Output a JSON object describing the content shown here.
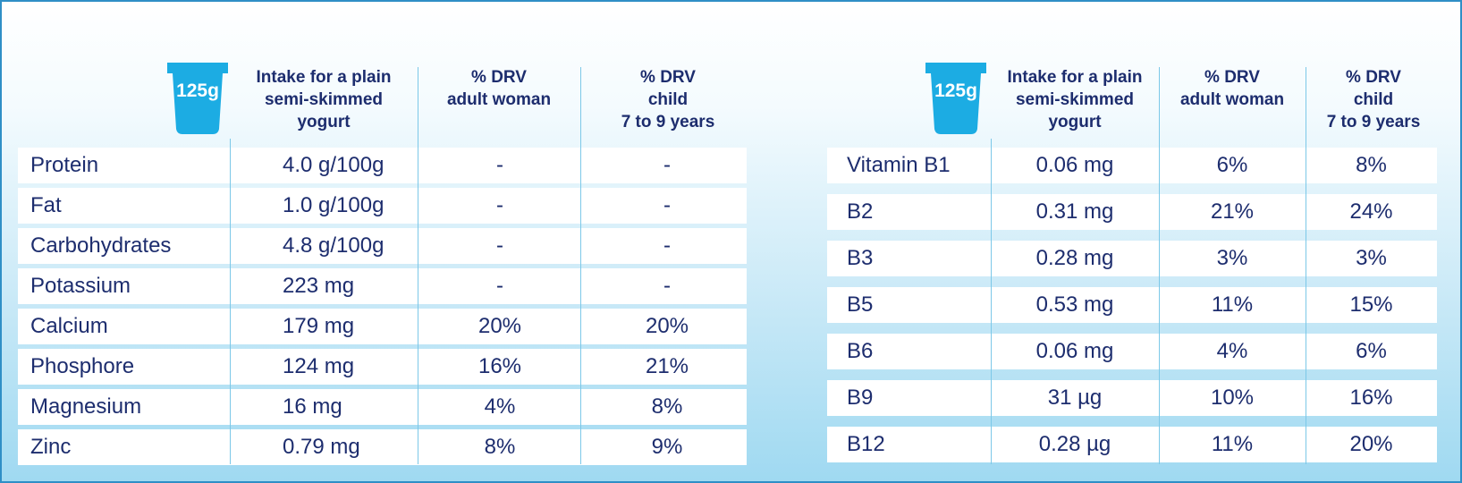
{
  "colors": {
    "text": "#1d2d6e",
    "cup": "#1cace3",
    "line": "#7cc8e8",
    "frame": "#2f8fc6"
  },
  "left_table": {
    "cup_label": "125g",
    "headers": {
      "intake": [
        "Intake for a plain",
        "semi-skimmed",
        "yogurt"
      ],
      "adult": [
        "% DRV",
        "adult woman"
      ],
      "child": [
        "% DRV",
        "child",
        "7 to 9 years"
      ]
    },
    "rows": [
      {
        "name": "Protein",
        "intake": "4.0 g/100g",
        "adult": "-",
        "child": "-"
      },
      {
        "name": "Fat",
        "intake": "1.0 g/100g",
        "adult": "-",
        "child": "-"
      },
      {
        "name": "Carbohydrates",
        "intake": "4.8 g/100g",
        "adult": "-",
        "child": "-"
      },
      {
        "name": "Potassium",
        "intake": "223 mg",
        "adult": "-",
        "child": "-"
      },
      {
        "name": "Calcium",
        "intake": "179 mg",
        "adult": "20%",
        "child": "20%"
      },
      {
        "name": "Phosphore",
        "intake": "124 mg",
        "adult": "16%",
        "child": "21%"
      },
      {
        "name": "Magnesium",
        "intake": "16 mg",
        "adult": "4%",
        "child": "8%"
      },
      {
        "name": "Zinc",
        "intake": "0.79 mg",
        "adult": "8%",
        "child": "9%"
      }
    ]
  },
  "right_table": {
    "cup_label": "125g",
    "headers": {
      "intake": [
        "Intake for a plain",
        "semi-skimmed",
        "yogurt"
      ],
      "adult": [
        "% DRV",
        "adult woman"
      ],
      "child": [
        "% DRV",
        "child",
        "7 to 9 years"
      ]
    },
    "rows": [
      {
        "name": "Vitamin B1",
        "intake": "0.06 mg",
        "adult": "6%",
        "child": "8%"
      },
      {
        "name": "B2",
        "intake": "0.31 mg",
        "adult": "21%",
        "child": "24%"
      },
      {
        "name": "B3",
        "intake": "0.28 mg",
        "adult": "3%",
        "child": "3%"
      },
      {
        "name": "B5",
        "intake": "0.53 mg",
        "adult": "11%",
        "child": "15%"
      },
      {
        "name": "B6",
        "intake": "0.06 mg",
        "adult": "4%",
        "child": "6%"
      },
      {
        "name": "B9",
        "intake": "31 µg",
        "adult": "10%",
        "child": "16%"
      },
      {
        "name": "B12",
        "intake": "0.28 µg",
        "adult": "11%",
        "child": "20%"
      }
    ]
  }
}
